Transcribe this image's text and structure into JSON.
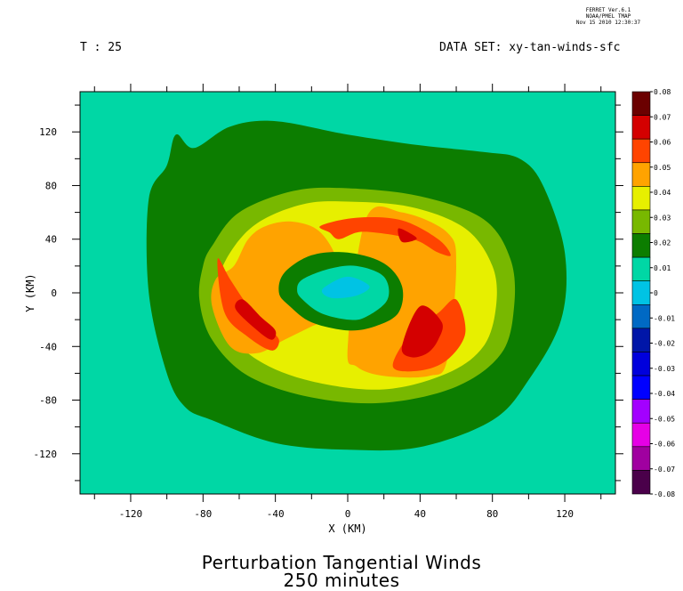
{
  "header": {
    "stamp_lines": [
      "FERRET Ver.6.1",
      "NOAA/PMEL TMAP",
      "Nov 15 2010 12:30:37"
    ],
    "time_label": "T : 25",
    "dataset_label": "DATA SET: xy-tan-winds-sfc"
  },
  "chart_data": {
    "type": "heatmap",
    "title": "Perturbation Tangential Winds",
    "subtitle": "250 minutes",
    "xlabel": "X (KM)",
    "ylabel": "Y (KM)",
    "xlim": [
      -148,
      148
    ],
    "ylim": [
      -150,
      150
    ],
    "x_ticks": [
      -120,
      -80,
      -40,
      0,
      40,
      80,
      120
    ],
    "y_ticks": [
      120,
      80,
      40,
      0,
      -40,
      -80,
      -120
    ],
    "x_tick_labels": [
      "-120",
      "-80",
      "-40",
      "0",
      "40",
      "80",
      "120"
    ],
    "y_tick_labels": [
      "120",
      "80",
      "40",
      "0",
      "-40",
      "-80",
      "-120"
    ],
    "colorbar": {
      "levels": [
        0.08,
        0.07,
        0.06,
        0.05,
        0.04,
        0.03,
        0.02,
        0.01,
        0,
        -0.01,
        -0.02,
        -0.03,
        -0.04,
        -0.05,
        -0.06,
        -0.07,
        -0.08
      ],
      "level_labels": [
        "0.08",
        "0.07",
        "0.06",
        "0.05",
        "0.04",
        "0.03",
        "0.02",
        "0.01",
        "0",
        "-0.01",
        "-0.02",
        "-0.03",
        "-0.04",
        "-0.05",
        "-0.06",
        "-0.07",
        "-0.08"
      ],
      "colors": [
        "#6b0000",
        "#d40000",
        "#ff4400",
        "#ffa300",
        "#e7ef00",
        "#78b800",
        "#0c7d00",
        "#00d7a5",
        "#00c3e4",
        "#0069c4",
        "#0016a8",
        "#0000dc",
        "#0000ff",
        "#a300ff",
        "#e600e6",
        "#a000a0",
        "#4a004a"
      ]
    },
    "background_color": "#00d7a5",
    "regions": [
      {
        "level": 0.01,
        "color": "#0c7d00",
        "x": [
          -110,
          -100,
          -95,
          -85,
          -65,
          -40,
          0,
          40,
          75,
          95,
          108,
          120,
          118,
          100,
          80,
          40,
          0,
          -40,
          -75,
          -90,
          -100,
          -110
        ],
        "y": [
          70,
          95,
          118,
          108,
          124,
          128,
          118,
          110,
          105,
          100,
          80,
          30,
          -20,
          -65,
          -95,
          -115,
          -117,
          -112,
          -95,
          -85,
          -60,
          0
        ]
      },
      {
        "level": 0.02,
        "color": "#78b800",
        "x": [
          -75,
          -60,
          -30,
          0,
          40,
          75,
          90,
          92,
          85,
          60,
          20,
          -20,
          -55,
          -75,
          -82,
          -80
        ],
        "y": [
          35,
          60,
          76,
          78,
          72,
          55,
          25,
          -10,
          -45,
          -70,
          -82,
          -78,
          -62,
          -35,
          -5,
          20
        ]
      },
      {
        "level": 0.03,
        "color": "#e7ef00",
        "x": [
          -65,
          -50,
          -25,
          0,
          35,
          65,
          80,
          82,
          75,
          55,
          20,
          -20,
          -50,
          -68,
          -72
        ],
        "y": [
          30,
          52,
          66,
          68,
          64,
          48,
          20,
          -10,
          -40,
          -60,
          -72,
          -66,
          -50,
          -25,
          5
        ]
      },
      {
        "level": 0.04,
        "color": "#ffa300",
        "x": [
          -63,
          -55,
          -45,
          -30,
          -15,
          -5,
          -5,
          -20,
          -35,
          -50,
          -65,
          -75,
          -73,
          10,
          30,
          55,
          60,
          55,
          45,
          20,
          5,
          0
        ],
        "y": [
          20,
          40,
          50,
          53,
          45,
          20,
          -15,
          -25,
          -35,
          -45,
          -40,
          -10,
          10,
          55,
          60,
          45,
          20,
          -50,
          -62,
          -62,
          -55,
          -40
        ],
        "parts": [
          13
        ]
      },
      {
        "level": 0.05,
        "color": "#ff4400",
        "x": [
          -72,
          -65,
          -55,
          -45,
          -38,
          -42,
          -55,
          -68,
          -15,
          5,
          30,
          50,
          57,
          50,
          40,
          30,
          15,
          5,
          -5,
          -10,
          60,
          65,
          55,
          40,
          25,
          35,
          50
        ],
        "y": [
          25,
          10,
          -10,
          -25,
          -35,
          -43,
          -33,
          -15,
          50,
          56,
          54,
          40,
          28,
          30,
          38,
          42,
          45,
          45,
          40,
          45,
          -5,
          -30,
          -50,
          -58,
          -55,
          -30,
          -15
        ],
        "parts": [
          8,
          20
        ]
      },
      {
        "level": 0.06,
        "color": "#d40000",
        "x": [
          -58,
          -48,
          -40,
          -42,
          -50,
          -62,
          28,
          35,
          38,
          30,
          40,
          52,
          50,
          44,
          35,
          30
        ],
        "y": [
          -5,
          -18,
          -28,
          -35,
          -28,
          -12,
          48,
          44,
          40,
          38,
          -10,
          -22,
          -35,
          -45,
          -48,
          -40
        ],
        "parts": [
          6,
          10
        ]
      },
      {
        "level": 0.01,
        "color": "#0c7d00",
        "x": [
          -35,
          -20,
          0,
          20,
          30,
          28,
          15,
          0,
          -20,
          -32,
          -38
        ],
        "y": [
          15,
          28,
          30,
          22,
          5,
          -15,
          -25,
          -28,
          -22,
          -10,
          0
        ]
      },
      {
        "level": 0,
        "color": "#00d7a5",
        "x": [
          -25,
          -10,
          5,
          20,
          22,
          10,
          0,
          -15,
          -25,
          -28
        ],
        "y": [
          10,
          18,
          20,
          12,
          -5,
          -18,
          -20,
          -15,
          -5,
          2
        ]
      },
      {
        "level": -0.01,
        "color": "#00c3e4",
        "x": [
          -12,
          0,
          12,
          5,
          -8,
          -14
        ],
        "y": [
          5,
          12,
          5,
          -2,
          -4,
          0
        ]
      }
    ]
  }
}
